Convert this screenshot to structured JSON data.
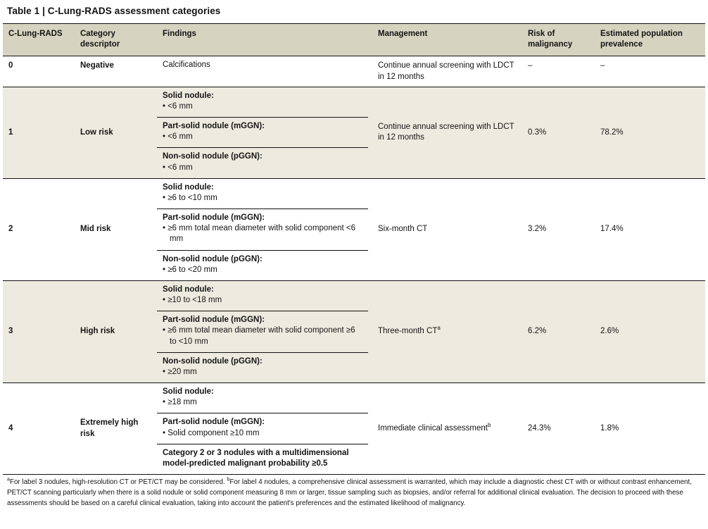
{
  "title": "Table 1 | C-Lung-RADS assessment categories",
  "columns": [
    "C-Lung-RADS",
    "Category descriptor",
    "Findings",
    "Management",
    "Risk of malignancy",
    "Estimated population prevalence"
  ],
  "rows": [
    {
      "category": "0",
      "descriptor": "Negative",
      "findings": [
        {
          "text": "Calcifications"
        }
      ],
      "management": {
        "text": "Continue annual screening with LDCT in 12 months",
        "sup": ""
      },
      "risk": "–",
      "prevalence": "–"
    },
    {
      "category": "1",
      "descriptor": "Low risk",
      "findings": [
        {
          "heading": "Solid nodule:",
          "bullets": [
            "<6 mm"
          ]
        },
        {
          "heading": "Part-solid nodule (mGGN):",
          "bullets": [
            "<6 mm"
          ]
        },
        {
          "heading": "Non-solid nodule (pGGN):",
          "bullets": [
            "<6 mm"
          ]
        }
      ],
      "management": {
        "text": "Continue annual screening with LDCT in 12 months",
        "sup": ""
      },
      "risk": "0.3%",
      "prevalence": "78.2%"
    },
    {
      "category": "2",
      "descriptor": "Mid risk",
      "findings": [
        {
          "heading": "Solid nodule:",
          "bullets": [
            "≥6 to <10 mm"
          ]
        },
        {
          "heading": "Part-solid nodule (mGGN):",
          "bullets": [
            "≥6 mm total mean diameter with solid component <6 mm"
          ]
        },
        {
          "heading": "Non-solid nodule (pGGN):",
          "bullets": [
            "≥6 to <20 mm"
          ]
        }
      ],
      "management": {
        "text": "Six-month CT",
        "sup": ""
      },
      "risk": "3.2%",
      "prevalence": "17.4%"
    },
    {
      "category": "3",
      "descriptor": "High risk",
      "findings": [
        {
          "heading": "Solid nodule:",
          "bullets": [
            "≥10 to <18 mm"
          ]
        },
        {
          "heading": "Part-solid nodule (mGGN):",
          "bullets": [
            "≥6 mm total mean diameter with solid component ≥6 to <10 mm"
          ]
        },
        {
          "heading": "Non-solid nodule (pGGN):",
          "bullets": [
            "≥20 mm"
          ]
        }
      ],
      "management": {
        "text": "Three-month CT",
        "sup": "a"
      },
      "risk": "6.2%",
      "prevalence": "2.6%"
    },
    {
      "category": "4",
      "descriptor": "Extremely high risk",
      "findings": [
        {
          "heading": "Solid nodule:",
          "bullets": [
            "≥18 mm"
          ]
        },
        {
          "heading": "Part-solid nodule (mGGN):",
          "bullets": [
            "Solid component ≥10 mm"
          ]
        },
        {
          "heading": "Category 2 or 3 nodules with a multidimensional model-predicted malignant probability ≥0.5",
          "bullets": []
        }
      ],
      "management": {
        "text": "Immediate clinical assessment",
        "sup": "b"
      },
      "risk": "24.3%",
      "prevalence": "1.8%"
    }
  ],
  "footnotes": [
    {
      "marker": "a",
      "text": "For label 3 nodules, high-resolution CT or PET/CT may be considered. "
    },
    {
      "marker": "b",
      "text": "For label 4 nodules, a comprehensive clinical assessment is warranted, which may include a diagnostic chest CT with or without contrast enhancement, PET/CT scanning particularly when there is a solid nodule or solid component measuring 8 mm or larger, tissue sampling such as biopsies, and/or referral for additional clinical evaluation. The decision to proceed with these assessments should be based on a careful clinical evaluation, taking into account the patient's preferences and the estimated likelihood of malignancy."
    }
  ],
  "colors": {
    "header_bg": "#d6d3c0",
    "shaded_row_bg": "#edebdf",
    "rule": "#111111",
    "text": "#141414"
  }
}
